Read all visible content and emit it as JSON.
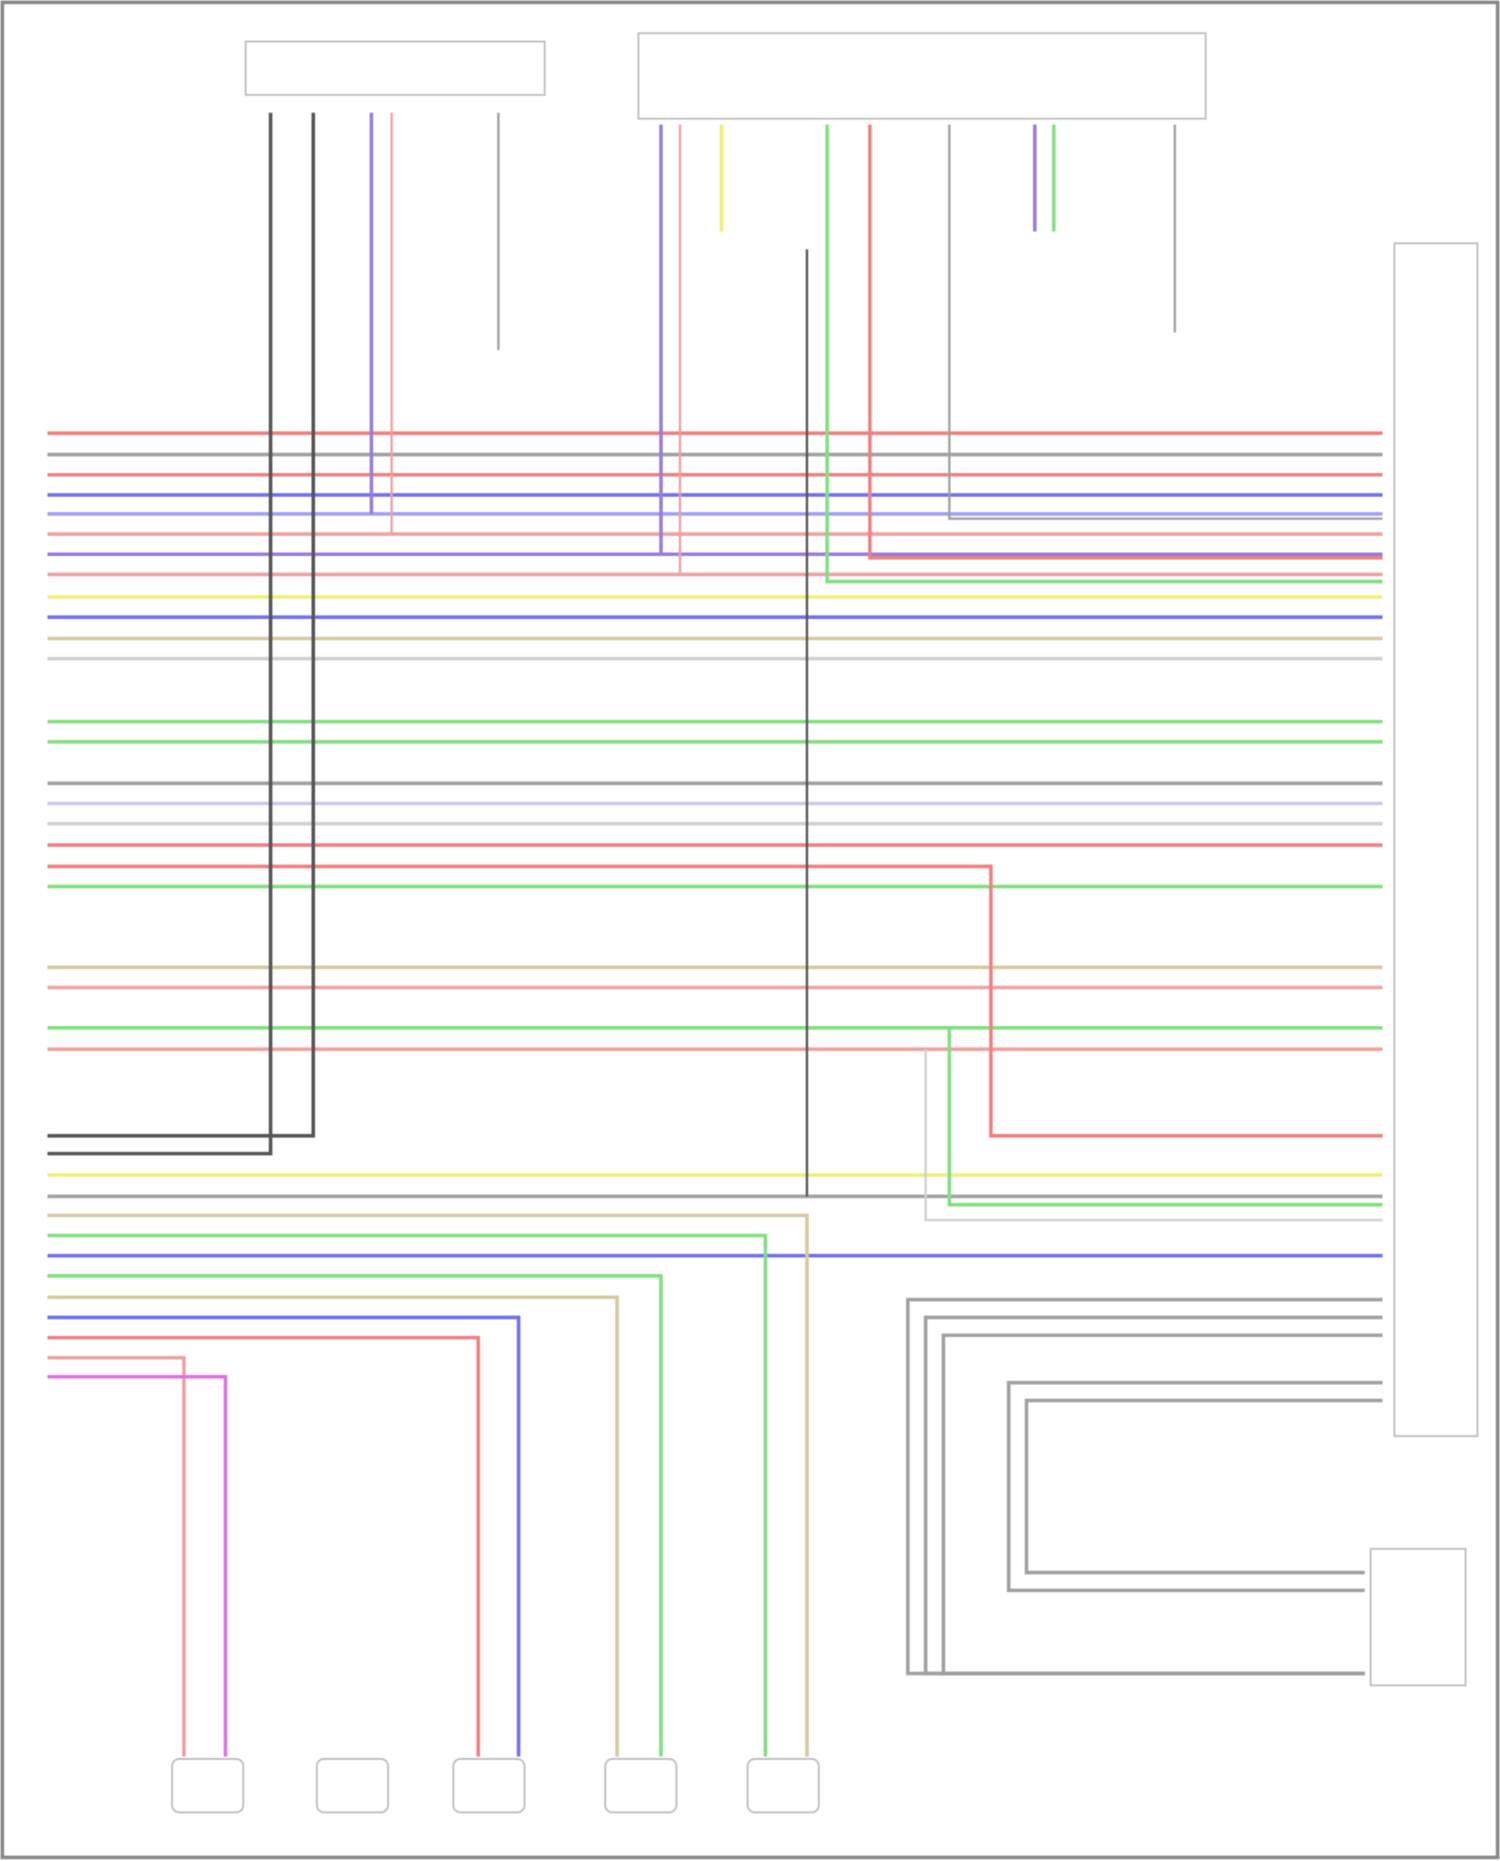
{
  "diagram": {
    "title": "",
    "wire_colors": {
      "red": "#f08080",
      "gray": "#a0a0a0",
      "darkgray": "#555555",
      "blue": "#7070f0",
      "lightblue": "#a0a0f0",
      "pink": "#f0a0a0",
      "purple": "#9b7bd9",
      "yellow": "#f0f070",
      "tan": "#d8c8a0",
      "lightgray": "#d0d0d0",
      "green": "#80e080",
      "lavender": "#c8c8f0",
      "magenta": "#e070e0"
    },
    "components": {
      "top_modules": 2,
      "right_connector": 1,
      "amplifier": 1,
      "speakers": 5
    }
  }
}
